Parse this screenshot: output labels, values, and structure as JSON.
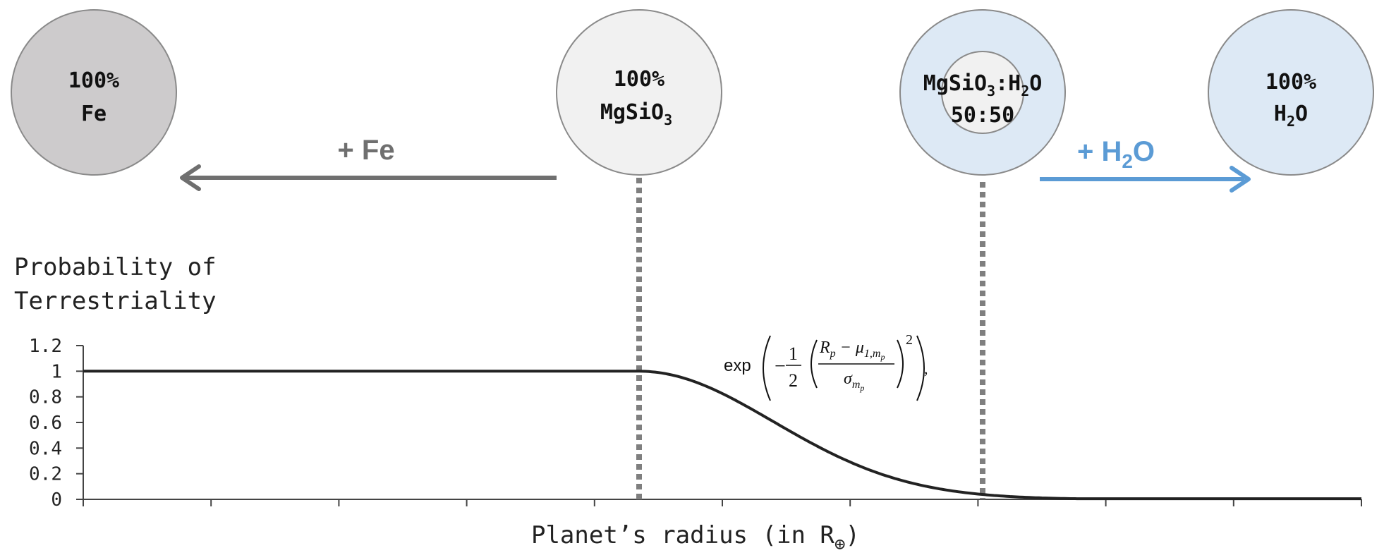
{
  "composition": {
    "iron": {
      "line1": "100%",
      "line2": "Fe",
      "fill": "#cdcbcc"
    },
    "silicate": {
      "line1": "100%",
      "line2_main": "MgSiO",
      "line2_sub": "3",
      "fill": "#f1f1f1"
    },
    "mix": {
      "line1_a": "MgSiO",
      "line1_sub_a": "3",
      "line1_b": ":H",
      "line1_sub_b": "2",
      "line1_c": "O",
      "line2": "50:50",
      "fill": "#dde9f5",
      "inner_fill": "#f1f1f1"
    },
    "water": {
      "line1": "100%",
      "line2_main": "H",
      "line2_sub": "2",
      "line2_end": "O",
      "fill": "#dde9f5"
    }
  },
  "arrows": {
    "fe": {
      "label": "+ Fe",
      "color": "#6f6f6f"
    },
    "h2o": {
      "label_main": "+ H",
      "label_sub": "2",
      "label_end": "O",
      "color": "#5b9bd5"
    }
  },
  "formula": {
    "exp": "exp",
    "minus": "−",
    "one": "1",
    "two": "2",
    "rp": "R",
    "rp_sub": "p",
    "minus2": " − μ",
    "mu_sub": "1,m",
    "mu_subsub": "p",
    "sigma": "σ",
    "sigma_sub": "m",
    "sigma_subsub": "p",
    "power": "2",
    "comma": ","
  },
  "chart_data": {
    "type": "line",
    "ylabel_line1": "Probability of",
    "ylabel_line2": "Terrestriality",
    "xlabel_main": "Planet’s radius (in R",
    "xlabel_sub": "⊕",
    "xlabel_end": ")",
    "ylim": [
      0,
      1.2
    ],
    "yticks": [
      "0",
      "0.2",
      "0.4",
      "0.6",
      "0.8",
      "1",
      "1.2"
    ],
    "x_tick_count": 11,
    "curve": {
      "flat_value": 1,
      "gaussian_start_fraction": 0.435,
      "gaussian_sigma_fraction": 0.105,
      "tail_value": 0.005
    },
    "dotted_markers": [
      "MgSiO3",
      "MgSiO3:H2O 50:50"
    ],
    "line_color": "#222222",
    "marker_color": "#7f7f7f"
  }
}
